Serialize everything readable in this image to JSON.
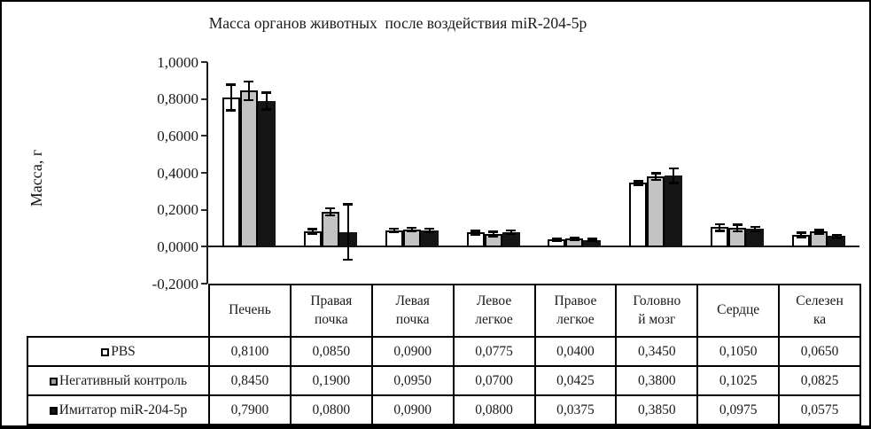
{
  "window": {
    "background": "#ffffff",
    "border_color": "#000000"
  },
  "chart_data": {
    "type": "bar",
    "title": "Масса органов животных  после воздействия miR-204-5p",
    "ylabel": "Масса, г",
    "ylim": [
      -0.2,
      1.0
    ],
    "grid": false,
    "legend_position": "table-left",
    "axis_color": "#1a1a1a",
    "yticks": [
      {
        "value": 1.0,
        "label": "1,0000"
      },
      {
        "value": 0.8,
        "label": "0,8000"
      },
      {
        "value": 0.6,
        "label": "0,6000"
      },
      {
        "value": 0.4,
        "label": "0,4000"
      },
      {
        "value": 0.2,
        "label": "0,2000"
      },
      {
        "value": 0.0,
        "label": "0,0000"
      },
      {
        "value": -0.2,
        "label": "-0,2000"
      }
    ],
    "categories": [
      "Печень",
      "Правая почка",
      "Левая почка",
      "Левое легкое",
      "Правое легкое",
      "Головной мозг",
      "Сердце",
      "Селезенка"
    ],
    "categories_display": [
      "Печень",
      "Правая\nпочка",
      "Левая\nпочка",
      "Левое\nлегкое",
      "Правое\nлегкое",
      "Головно\nй мозг",
      "Сердце",
      "Селезен\nка"
    ],
    "series": [
      {
        "name": "PBS",
        "bar_fill": "#ffffff",
        "marker_fill": "#ffffff",
        "values": [
          0.81,
          0.085,
          0.09,
          0.0775,
          0.04,
          0.345,
          0.105,
          0.065
        ],
        "display": [
          "0,8100",
          "0,0850",
          "0,0900",
          "0,0775",
          "0,0400",
          "0,3450",
          "0,1050",
          "0,0650"
        ],
        "errors": [
          0.07,
          0.012,
          0.008,
          0.01,
          0.005,
          0.01,
          0.018,
          0.012
        ]
      },
      {
        "name": "Негативный контроль",
        "bar_fill": "#c3c3c3",
        "marker_fill": "#9e9e9e",
        "values": [
          0.845,
          0.19,
          0.095,
          0.07,
          0.0425,
          0.38,
          0.1025,
          0.0825
        ],
        "display": [
          "0,8450",
          "0,1900",
          "0,0950",
          "0,0700",
          "0,0425",
          "0,3800",
          "0,1025",
          "0,0825"
        ],
        "errors": [
          0.05,
          0.02,
          0.008,
          0.012,
          0.005,
          0.018,
          0.018,
          0.01
        ]
      },
      {
        "name": "Имитатор miR-204-5p",
        "bar_fill": "#151515",
        "marker_fill": "#151515",
        "values": [
          0.79,
          0.08,
          0.09,
          0.08,
          0.0375,
          0.385,
          0.0975,
          0.0575
        ],
        "display": [
          "0,7900",
          "0,0800",
          "0,0900",
          "0,0800",
          "0,0375",
          "0,3850",
          "0,0975",
          "0,0575"
        ],
        "errors": [
          0.045,
          0.15,
          0.01,
          0.01,
          0.005,
          0.04,
          0.012,
          0.008
        ]
      }
    ]
  }
}
